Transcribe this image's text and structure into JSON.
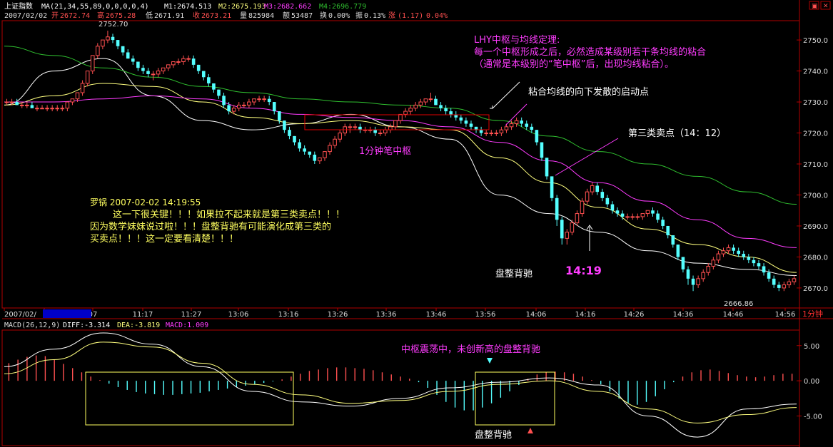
{
  "header": {
    "name": "上证指数",
    "ma_label": "MA(21,34,55,89,0,0,0,0,4)",
    "m1": "M1:2674.513",
    "m2": "M2:2675.193",
    "m3": "M3:2682.662",
    "m4": "M4:2696.779",
    "date": "2007/02/02",
    "open_label": "开",
    "open_value": "2672.74",
    "high_label": "高",
    "high_value": "2675.28",
    "low_label": "低",
    "low_value": "2671.91",
    "close_label": "收",
    "close_value": "2673.21",
    "vol_label": "量",
    "vol_value": "825984",
    "amt_label": "额",
    "amt_value": "53487",
    "turn_label": "换",
    "turn_value": "0.00%",
    "amp_label": "振",
    "amp_value": "0.13%",
    "chg_label": "涨",
    "chg_value": "(1.17)",
    "chg_pct": "0.04%"
  },
  "colors": {
    "up": "#ff5050",
    "down": "#54ffff",
    "ma1": "#ffffff",
    "ma2": "#ffff7f",
    "ma3": "#ff3cff",
    "ma4": "#2fbf2f",
    "axis": "#b00000",
    "magenta": "#ff3cff",
    "yellow": "#ffff60",
    "zhongshu": "#e00000"
  },
  "time_axis": {
    "labels": [
      "2007/02/",
      "02/02, 11:00",
      "07",
      "11:17",
      "11:27",
      "13:06",
      "13:16",
      "13:26",
      "13:36",
      "13:46",
      "13:56",
      "14:06",
      "14:16",
      "14:26",
      "14:36",
      "14:46",
      "14:56"
    ],
    "period": "1分钟"
  },
  "annotations": {
    "high_label": "2752.70",
    "low_label": "2666.86",
    "theorem": [
      "LHY中枢与均线定理:",
      "每一个中枢形成之后，必然造成某级别若干条均线的粘合",
      "（通常是本级别的“笔中枢”后，出现均线粘合）。"
    ],
    "diverge": "粘合均线的向下发散的启动点",
    "third_sell": "第三类卖点（14：12）",
    "zhongshu": "1分钟笔中枢",
    "comment": [
      "罗锅 2007-02-02 14:19:55",
      "这一下很关键！！！如果拉不起来就是第三类卖点！！！",
      "因为数学妹妹说过啦！！！盘整背驰有可能演化成第三类的",
      "买卖点！！！这一定要看清楚！！！"
    ],
    "panzheng1": "盘整背驰",
    "time_1419": "14:19",
    "macd_note": "中枢震荡中，未创新高的盘整背驰",
    "panzheng2": "盘整背驰"
  },
  "macd": {
    "label": "MACD(26,12,9)",
    "diff": "DIFF:-3.314",
    "dea": "DEA:-3.819",
    "macd": "MACD:1.009"
  },
  "chart_data": [
    {
      "type": "candlestick",
      "title": "上证指数 1分钟",
      "y_ticks": [
        2670,
        2680,
        2690,
        2700,
        2710,
        2720,
        2730,
        2740,
        2750
      ],
      "ylim": [
        2664,
        2756
      ],
      "period": "1分钟",
      "ohlc": [
        [
          2730,
          2731,
          2729,
          2730
        ],
        [
          2730,
          2731,
          2729,
          2730
        ],
        [
          2730,
          2731,
          2729,
          2729
        ],
        [
          2729,
          2730,
          2728,
          2729
        ],
        [
          2729,
          2730,
          2728,
          2729
        ],
        [
          2729,
          2730,
          2728,
          2728
        ],
        [
          2728,
          2729,
          2727,
          2728
        ],
        [
          2728,
          2729,
          2728,
          2728
        ],
        [
          2728,
          2729,
          2727,
          2728
        ],
        [
          2728,
          2729,
          2727,
          2728
        ],
        [
          2728,
          2729,
          2727,
          2728
        ],
        [
          2728,
          2729,
          2727,
          2728
        ],
        [
          2728,
          2730,
          2727,
          2730
        ],
        [
          2730,
          2731,
          2729,
          2731
        ],
        [
          2731,
          2733,
          2730,
          2733
        ],
        [
          2733,
          2737,
          2732,
          2736
        ],
        [
          2736,
          2740,
          2735,
          2740
        ],
        [
          2740,
          2745,
          2739,
          2745
        ],
        [
          2745,
          2749,
          2744,
          2748
        ],
        [
          2748,
          2750,
          2747,
          2750
        ],
        [
          2750,
          2753,
          2749,
          2751
        ],
        [
          2751,
          2752,
          2749,
          2750
        ],
        [
          2750,
          2750,
          2747,
          2748
        ],
        [
          2748,
          2748,
          2745,
          2746
        ],
        [
          2746,
          2747,
          2744,
          2744
        ],
        [
          2744,
          2745,
          2742,
          2743
        ],
        [
          2743,
          2743,
          2740,
          2741
        ],
        [
          2741,
          2742,
          2739,
          2740
        ],
        [
          2740,
          2741,
          2738,
          2739
        ],
        [
          2739,
          2740,
          2737,
          2739
        ],
        [
          2739,
          2741,
          2738,
          2740
        ],
        [
          2740,
          2741,
          2739,
          2741
        ],
        [
          2741,
          2742,
          2740,
          2742
        ],
        [
          2742,
          2743,
          2741,
          2743
        ],
        [
          2743,
          2744,
          2742,
          2743
        ],
        [
          2743,
          2745,
          2742,
          2744
        ],
        [
          2744,
          2745,
          2743,
          2744
        ],
        [
          2744,
          2745,
          2741,
          2742
        ],
        [
          2742,
          2742,
          2739,
          2740
        ],
        [
          2740,
          2740,
          2737,
          2738
        ],
        [
          2738,
          2739,
          2735,
          2736
        ],
        [
          2736,
          2736,
          2733,
          2734
        ],
        [
          2734,
          2734,
          2731,
          2732
        ],
        [
          2732,
          2733,
          2728,
          2729
        ],
        [
          2729,
          2730,
          2726,
          2727
        ],
        [
          2727,
          2729,
          2726,
          2728
        ],
        [
          2728,
          2730,
          2727,
          2729
        ],
        [
          2729,
          2730,
          2728,
          2729
        ],
        [
          2729,
          2731,
          2728,
          2730
        ],
        [
          2730,
          2731,
          2729,
          2731
        ],
        [
          2731,
          2732,
          2730,
          2731
        ],
        [
          2731,
          2732,
          2730,
          2731
        ],
        [
          2731,
          2732,
          2729,
          2730
        ],
        [
          2730,
          2730,
          2726,
          2727
        ],
        [
          2727,
          2727,
          2723,
          2724
        ],
        [
          2724,
          2724,
          2720,
          2721
        ],
        [
          2721,
          2722,
          2718,
          2719
        ],
        [
          2719,
          2719,
          2716,
          2717
        ],
        [
          2717,
          2718,
          2714,
          2715
        ],
        [
          2715,
          2716,
          2713,
          2714
        ],
        [
          2714,
          2714,
          2712,
          2713
        ],
        [
          2713,
          2714,
          2710,
          2711
        ],
        [
          2711,
          2712,
          2710,
          2712
        ],
        [
          2712,
          2714,
          2711,
          2714
        ],
        [
          2714,
          2717,
          2713,
          2716
        ],
        [
          2716,
          2719,
          2715,
          2718
        ],
        [
          2718,
          2721,
          2717,
          2720
        ],
        [
          2720,
          2723,
          2719,
          2722
        ],
        [
          2722,
          2723,
          2720,
          2722
        ],
        [
          2722,
          2723,
          2721,
          2722
        ],
        [
          2722,
          2723,
          2720,
          2721
        ],
        [
          2721,
          2722,
          2720,
          2721
        ],
        [
          2721,
          2722,
          2720,
          2721
        ],
        [
          2721,
          2722,
          2719,
          2720
        ],
        [
          2720,
          2721,
          2719,
          2720
        ],
        [
          2720,
          2722,
          2719,
          2721
        ],
        [
          2721,
          2723,
          2720,
          2722
        ],
        [
          2722,
          2724,
          2721,
          2724
        ],
        [
          2724,
          2726,
          2723,
          2726
        ],
        [
          2726,
          2728,
          2725,
          2727
        ],
        [
          2727,
          2729,
          2726,
          2728
        ],
        [
          2728,
          2730,
          2727,
          2729
        ],
        [
          2729,
          2731,
          2728,
          2730
        ],
        [
          2730,
          2731,
          2729,
          2731
        ],
        [
          2731,
          2733,
          2730,
          2731
        ],
        [
          2731,
          2732,
          2729,
          2729
        ],
        [
          2729,
          2730,
          2727,
          2728
        ],
        [
          2728,
          2729,
          2726,
          2727
        ],
        [
          2727,
          2728,
          2725,
          2726
        ],
        [
          2726,
          2727,
          2724,
          2725
        ],
        [
          2725,
          2726,
          2723,
          2724
        ],
        [
          2724,
          2725,
          2722,
          2723
        ],
        [
          2723,
          2724,
          2721,
          2722
        ],
        [
          2722,
          2722,
          2720,
          2721
        ],
        [
          2721,
          2722,
          2719,
          2720
        ],
        [
          2720,
          2721,
          2719,
          2720
        ],
        [
          2720,
          2721,
          2719,
          2720
        ],
        [
          2720,
          2721,
          2719,
          2720
        ],
        [
          2720,
          2722,
          2719,
          2721
        ],
        [
          2721,
          2723,
          2720,
          2722
        ],
        [
          2722,
          2724,
          2721,
          2723
        ],
        [
          2723,
          2725,
          2722,
          2724
        ],
        [
          2724,
          2725,
          2722,
          2723
        ],
        [
          2723,
          2724,
          2721,
          2722
        ],
        [
          2722,
          2723,
          2720,
          2721
        ],
        [
          2721,
          2721,
          2716,
          2717
        ],
        [
          2717,
          2717,
          2711,
          2712
        ],
        [
          2712,
          2712,
          2705,
          2706
        ],
        [
          2706,
          2706,
          2698,
          2699
        ],
        [
          2699,
          2700,
          2690,
          2692
        ],
        [
          2692,
          2693,
          2684,
          2686
        ],
        [
          2686,
          2689,
          2684,
          2688
        ],
        [
          2688,
          2692,
          2687,
          2691
        ],
        [
          2691,
          2695,
          2690,
          2694
        ],
        [
          2694,
          2699,
          2693,
          2698
        ],
        [
          2698,
          2702,
          2697,
          2701
        ],
        [
          2701,
          2704,
          2700,
          2703
        ],
        [
          2703,
          2704,
          2700,
          2701
        ],
        [
          2701,
          2702,
          2698,
          2699
        ],
        [
          2699,
          2700,
          2696,
          2697
        ],
        [
          2697,
          2698,
          2694,
          2695
        ],
        [
          2695,
          2696,
          2693,
          2694
        ],
        [
          2694,
          2695,
          2692,
          2693
        ],
        [
          2693,
          2694,
          2692,
          2693
        ],
        [
          2693,
          2694,
          2692,
          2693
        ],
        [
          2693,
          2694,
          2692,
          2693
        ],
        [
          2693,
          2694,
          2692,
          2694
        ],
        [
          2694,
          2695,
          2693,
          2695
        ],
        [
          2695,
          2696,
          2693,
          2694
        ],
        [
          2694,
          2695,
          2691,
          2692
        ],
        [
          2692,
          2693,
          2689,
          2690
        ],
        [
          2690,
          2690,
          2686,
          2687
        ],
        [
          2687,
          2687,
          2683,
          2684
        ],
        [
          2684,
          2684,
          2679,
          2680
        ],
        [
          2680,
          2680,
          2675,
          2676
        ],
        [
          2676,
          2677,
          2671,
          2673
        ],
        [
          2673,
          2674,
          2669,
          2671
        ],
        [
          2671,
          2674,
          2670,
          2673
        ],
        [
          2673,
          2676,
          2672,
          2675
        ],
        [
          2675,
          2678,
          2674,
          2677
        ],
        [
          2677,
          2680,
          2676,
          2679
        ],
        [
          2679,
          2682,
          2678,
          2681
        ],
        [
          2681,
          2683,
          2680,
          2682
        ],
        [
          2682,
          2684,
          2681,
          2683
        ],
        [
          2683,
          2684,
          2681,
          2682
        ],
        [
          2682,
          2683,
          2680,
          2681
        ],
        [
          2681,
          2682,
          2679,
          2680
        ],
        [
          2680,
          2681,
          2678,
          2679
        ],
        [
          2679,
          2680,
          2677,
          2678
        ],
        [
          2678,
          2679,
          2676,
          2677
        ],
        [
          2677,
          2678,
          2674,
          2675
        ],
        [
          2675,
          2676,
          2672,
          2673
        ],
        [
          2673,
          2674,
          2670,
          2671
        ],
        [
          2671,
          2672,
          2669,
          2670
        ],
        [
          2670,
          2672,
          2669,
          2671
        ],
        [
          2671,
          2673,
          2670,
          2672
        ],
        [
          2672,
          2674,
          2671,
          2673
        ]
      ],
      "series": [
        {
          "name": "M1",
          "values": [
            2729,
            2740,
            2744,
            2732,
            2724,
            2721,
            2723,
            2726,
            2722,
            2718,
            2700,
            2694,
            2688,
            2682,
            2678,
            2676,
            2674
          ]
        },
        {
          "name": "M2",
          "values": [
            2729,
            2732,
            2736,
            2735,
            2730,
            2725,
            2723,
            2724,
            2722,
            2721,
            2712,
            2704,
            2696,
            2689,
            2684,
            2680,
            2675
          ]
        },
        {
          "name": "M3",
          "values": [
            2730,
            2730,
            2731,
            2732,
            2731,
            2728,
            2726,
            2725,
            2724,
            2722,
            2717,
            2711,
            2704,
            2698,
            2692,
            2686,
            2683
          ]
        },
        {
          "name": "M4",
          "values": [
            2748,
            2745,
            2741,
            2738,
            2735,
            2733,
            2731,
            2730,
            2729,
            2728,
            2724,
            2719,
            2714,
            2710,
            2706,
            2701,
            2697
          ]
        }
      ]
    },
    {
      "type": "bar",
      "title": "MACD(26,12,9)",
      "y_ticks": [
        5,
        0,
        -5
      ],
      "ylim": [
        -9,
        7
      ],
      "series": [
        {
          "name": "MACD",
          "values": [
            2.5,
            3.0,
            3.4,
            3.6,
            3.5,
            3.0,
            2.4,
            1.8,
            1.2,
            0.6,
            0.1,
            -0.4,
            -0.9,
            -1.3,
            -1.6,
            -1.8,
            -1.9,
            -2.0,
            -2.0,
            -1.9,
            -1.8,
            -1.7,
            -1.5,
            -1.3,
            -1.1,
            -0.9,
            -0.7,
            -0.5,
            -0.3,
            -0.1,
            0.2,
            0.6,
            1.0,
            1.4,
            1.6,
            1.8,
            1.9,
            1.9,
            1.8,
            1.7,
            1.5,
            1.2,
            0.9,
            0.6,
            0.3,
            -0.2,
            -1.0,
            -2.0,
            -3.0,
            -3.8,
            -4.2,
            -4.2,
            -3.8,
            -3.2,
            -2.4,
            -1.5,
            -0.6,
            0.3,
            0.9,
            1.2,
            1.3,
            1.2,
            1.0,
            0.6,
            0.1,
            -0.5,
            -1.5,
            -2.5,
            -3.2,
            -3.4,
            -3.0,
            -2.2,
            -1.2,
            -0.2,
            0.6,
            1.2,
            1.5,
            1.6,
            1.4,
            1.1,
            0.8,
            0.6,
            0.5,
            0.6,
            0.8,
            1.0,
            1.0
          ]
        },
        {
          "name": "DIFF",
          "values": [
            2.0,
            4.5,
            6.8,
            5.2,
            2.0,
            -1.5,
            -3.0,
            -3.6,
            -2.5,
            -1.0,
            -0.2,
            0.4,
            -0.6,
            -5.0,
            -8.0,
            -4.0,
            -3.3
          ]
        },
        {
          "name": "DEA",
          "values": [
            1.0,
            3.0,
            5.5,
            4.8,
            2.5,
            -0.5,
            -2.0,
            -3.2,
            -2.8,
            -1.5,
            -0.5,
            0.0,
            -1.5,
            -4.0,
            -6.0,
            -4.8,
            -3.8
          ]
        }
      ]
    }
  ]
}
